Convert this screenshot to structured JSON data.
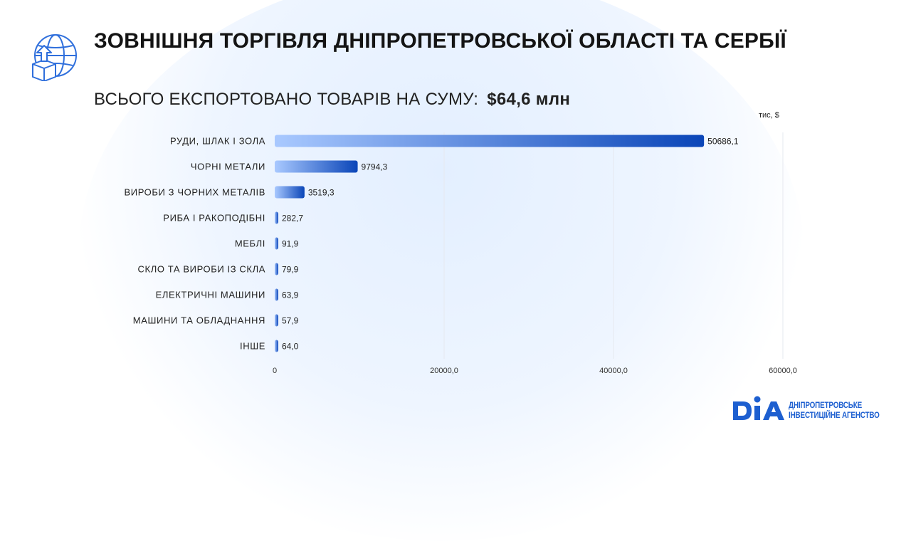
{
  "header": {
    "title": "ЗОВНІШНЯ ТОРГІВЛЯ ДНІПРОПЕТРОВСЬКОЇ ОБЛАСТІ ТА СЕРБІЇ",
    "subtitle_label": "ВСЬОГО ЕКСПОРТОВАНО ТОВАРІВ НА СУМУ:",
    "subtitle_total": "$64,6 млн"
  },
  "icons": {
    "header_icon": "globe-export-icon"
  },
  "chart_data": {
    "type": "bar",
    "orientation": "horizontal",
    "unit_label": "тис, $",
    "categories": [
      "РУДИ, ШЛАК І ЗОЛА",
      "ЧОРНІ МЕТАЛИ",
      "ВИРОБИ З ЧОРНИХ МЕТАЛІВ",
      "РИБА І РАКОПОДІБНІ",
      "МЕБЛІ",
      "СКЛО ТА ВИРОБИ ІЗ СКЛА",
      "ЕЛЕКТРИЧНІ МАШИНИ",
      "МАШИНИ ТА ОБЛАДНАННЯ",
      "ІНШЕ"
    ],
    "values": [
      50686.1,
      9794.3,
      3519.3,
      282.7,
      91.9,
      79.9,
      63.9,
      57.9,
      64.0
    ],
    "value_labels": [
      "50686,1",
      "9794,3",
      "3519,3",
      "282,7",
      "91,9",
      "79,9",
      "63,9",
      "57,9",
      "64,0"
    ],
    "xlim": [
      0,
      60000
    ],
    "xticks": [
      0,
      20000,
      40000,
      60000
    ],
    "xtick_labels": [
      "0",
      "20000,0",
      "40000,0",
      "60000,0"
    ],
    "grid": true,
    "colors": {
      "bar_start": "#a9c9ff",
      "bar_end": "#0a45b8",
      "grid": "#e6e9ef"
    }
  },
  "logo": {
    "mark": "DIA",
    "line1": "ДНІПРОПЕТРОВСЬКЕ",
    "line2": "ІНВЕСТИЦІЙНЕ АГЕНСТВО",
    "color": "#1d5fd0"
  }
}
